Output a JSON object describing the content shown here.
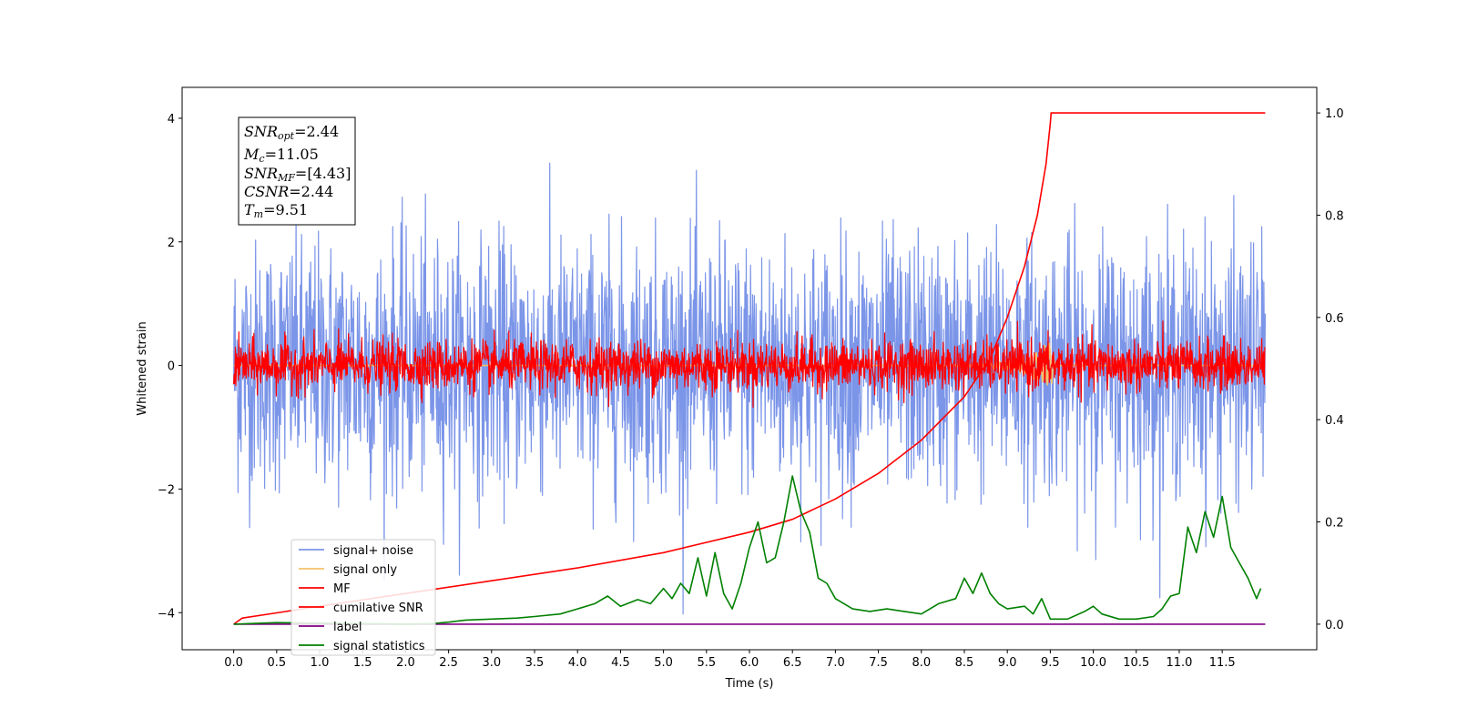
{
  "chart_data": {
    "type": "line",
    "xlabel": "Time (s)",
    "ylabel": "Whitened strain",
    "xlim": [
      -0.6,
      12.6
    ],
    "ylim_left": [
      -4.6,
      4.5
    ],
    "ylim_right": [
      -0.05,
      1.05
    ],
    "x_ticks": [
      "0.0",
      "0.5",
      "1.0",
      "1.5",
      "2.0",
      "2.5",
      "3.0",
      "3.5",
      "4.0",
      "4.5",
      "5.0",
      "5.5",
      "6.0",
      "6.5",
      "7.0",
      "7.5",
      "8.0",
      "8.5",
      "9.0",
      "9.5",
      "10.0",
      "10.5",
      "11.0",
      "11.5"
    ],
    "y_ticks_left": [
      "4",
      "2",
      "0",
      "−2",
      "−4"
    ],
    "y_ticks_right": [
      "1.0",
      "0.8",
      "0.6",
      "0.4",
      "0.2",
      "0.0"
    ],
    "annotation": {
      "snr_opt": {
        "base": "SNR",
        "sub": "opt",
        "value": "=2.44"
      },
      "mc": {
        "base": "M",
        "sub": "c",
        "value": "=11.05"
      },
      "snr_mf": {
        "base": "SNR",
        "sub": "MF",
        "value": "=[4.43]"
      },
      "csnr": {
        "base": "CSNR",
        "value": "=2.44"
      },
      "tm": {
        "base": "T",
        "sub": "m",
        "value": "=9.51"
      }
    },
    "legend_position": "lower-left",
    "series": [
      {
        "name": "signal+ noise",
        "axis": "left",
        "color": "#7b95e8",
        "style": "noise",
        "x_range": [
          0,
          12.0
        ],
        "amplitude_std": 1.0,
        "peak_abs": 4.1
      },
      {
        "name": "signal only",
        "axis": "left",
        "color": "#f5c26b",
        "style": "chirp",
        "x_range": [
          0,
          12.0
        ],
        "peak_x": 9.51,
        "peak_abs": 0.4
      },
      {
        "name": "MF",
        "axis": "left",
        "color": "#ff0000",
        "style": "noise",
        "x_range": [
          0,
          12.0
        ],
        "amplitude_std": 0.2,
        "peak_abs": 1.0
      },
      {
        "name": "cumilative SNR",
        "axis": "right",
        "color": "#ff0000",
        "x": [
          0.0,
          0.1,
          0.5,
          1.0,
          2.0,
          3.0,
          4.0,
          5.0,
          6.0,
          6.5,
          7.0,
          7.5,
          8.0,
          8.5,
          8.8,
          9.0,
          9.2,
          9.35,
          9.45,
          9.5,
          9.51,
          10.0,
          11.0,
          11.5,
          12.0
        ],
        "y": [
          0.0,
          0.012,
          0.022,
          0.035,
          0.06,
          0.085,
          0.11,
          0.14,
          0.18,
          0.205,
          0.245,
          0.295,
          0.36,
          0.445,
          0.52,
          0.6,
          0.7,
          0.8,
          0.9,
          0.98,
          1.0,
          1.0,
          1.0,
          1.0,
          1.0
        ]
      },
      {
        "name": "label",
        "axis": "right",
        "color": "#800080",
        "x": [
          0.0,
          12.0
        ],
        "y": [
          0.0,
          0.0
        ]
      },
      {
        "name": "signal statistics",
        "axis": "right",
        "color": "#008000",
        "x": [
          0.0,
          0.5,
          1.0,
          1.5,
          2.0,
          2.3,
          2.5,
          2.7,
          3.0,
          3.3,
          3.5,
          3.8,
          4.0,
          4.2,
          4.35,
          4.5,
          4.7,
          4.85,
          5.0,
          5.1,
          5.2,
          5.3,
          5.4,
          5.5,
          5.6,
          5.7,
          5.8,
          5.9,
          6.0,
          6.1,
          6.2,
          6.3,
          6.4,
          6.5,
          6.6,
          6.7,
          6.8,
          6.9,
          7.0,
          7.2,
          7.4,
          7.6,
          7.8,
          8.0,
          8.2,
          8.4,
          8.5,
          8.6,
          8.7,
          8.8,
          8.9,
          9.0,
          9.2,
          9.3,
          9.4,
          9.5,
          9.7,
          9.9,
          10.0,
          10.1,
          10.3,
          10.5,
          10.7,
          10.8,
          10.9,
          11.0,
          11.1,
          11.2,
          11.3,
          11.4,
          11.5,
          11.6,
          11.7,
          11.8,
          11.9,
          11.95
        ],
        "y": [
          0.0,
          0.003,
          0.002,
          0.001,
          0.0,
          0.001,
          0.004,
          0.008,
          0.01,
          0.012,
          0.015,
          0.02,
          0.03,
          0.04,
          0.055,
          0.035,
          0.048,
          0.04,
          0.07,
          0.05,
          0.08,
          0.06,
          0.13,
          0.055,
          0.14,
          0.06,
          0.03,
          0.08,
          0.15,
          0.2,
          0.12,
          0.13,
          0.2,
          0.29,
          0.22,
          0.18,
          0.09,
          0.08,
          0.05,
          0.03,
          0.025,
          0.03,
          0.025,
          0.02,
          0.04,
          0.05,
          0.09,
          0.06,
          0.1,
          0.06,
          0.04,
          0.03,
          0.035,
          0.02,
          0.05,
          0.01,
          0.01,
          0.025,
          0.035,
          0.02,
          0.01,
          0.01,
          0.015,
          0.03,
          0.055,
          0.06,
          0.19,
          0.14,
          0.22,
          0.17,
          0.25,
          0.15,
          0.12,
          0.09,
          0.05,
          0.07
        ]
      }
    ]
  }
}
